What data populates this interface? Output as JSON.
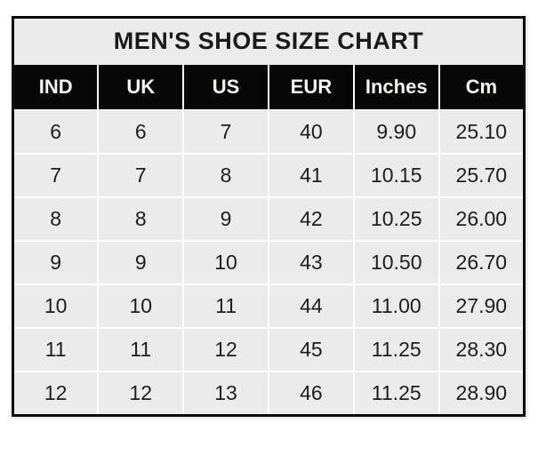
{
  "title": "MEN'S SHOE SIZE CHART",
  "table": {
    "columns": [
      "IND",
      "UK",
      "US",
      "EUR",
      "Inches",
      "Cm"
    ],
    "rows": [
      [
        "6",
        "6",
        "7",
        "40",
        "9.90",
        "25.10"
      ],
      [
        "7",
        "7",
        "8",
        "41",
        "10.15",
        "25.70"
      ],
      [
        "8",
        "8",
        "9",
        "42",
        "10.25",
        "26.00"
      ],
      [
        "9",
        "9",
        "10",
        "43",
        "10.50",
        "26.70"
      ],
      [
        "10",
        "10",
        "11",
        "44",
        "11.00",
        "27.90"
      ],
      [
        "11",
        "11",
        "12",
        "45",
        "11.25",
        "28.30"
      ],
      [
        "12",
        "12",
        "13",
        "46",
        "11.25",
        "28.90"
      ]
    ]
  },
  "chart_data": {
    "type": "table",
    "title": "MEN'S SHOE SIZE CHART",
    "columns": [
      "IND",
      "UK",
      "US",
      "EUR",
      "Inches",
      "Cm"
    ],
    "rows": [
      [
        6,
        6,
        7,
        40,
        9.9,
        25.1
      ],
      [
        7,
        7,
        8,
        41,
        10.15,
        25.7
      ],
      [
        8,
        8,
        9,
        42,
        10.25,
        26.0
      ],
      [
        9,
        9,
        10,
        43,
        10.5,
        26.7
      ],
      [
        10,
        10,
        11,
        44,
        11.0,
        27.9
      ],
      [
        11,
        11,
        12,
        45,
        11.25,
        28.3
      ],
      [
        12,
        12,
        13,
        46,
        11.25,
        28.9
      ]
    ]
  },
  "colors": {
    "title_bg": "#ebebeb",
    "header_bg": "#070707",
    "header_text": "#f7f5f1",
    "cell_bg": "#ebebeb",
    "grid_line": "#ffffff",
    "outer_border": "#0b0b0b",
    "text": "#1d1d1d",
    "page_bg": "#ffffff"
  }
}
